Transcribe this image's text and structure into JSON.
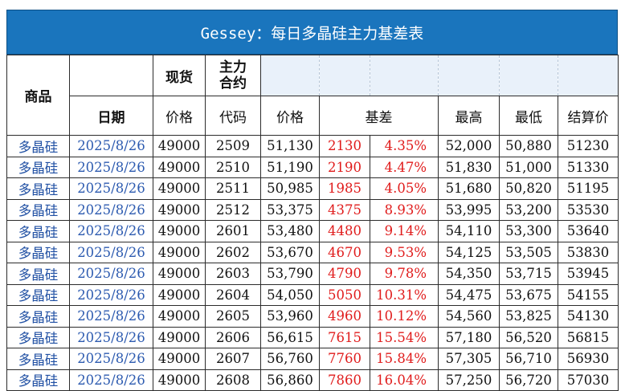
{
  "title": "Gessey：每日多晶硅主力基差表",
  "headers": {
    "product": "商品",
    "spot_top": "现货",
    "main_top": "主力\n合约",
    "date": "日期",
    "spot_price": "价格",
    "code": "代码",
    "price": "价格",
    "basis": "基差",
    "high": "最高",
    "low": "最低",
    "settle": "结算价"
  },
  "rows": [
    {
      "product": "多晶硅",
      "date": "2025/8/26",
      "spot": "49000",
      "code": "2509",
      "price": "51,130",
      "basis": "2130",
      "basis_pct": "4.35%",
      "high": "52,000",
      "low": "50,880",
      "settle": "51230"
    },
    {
      "product": "多晶硅",
      "date": "2025/8/26",
      "spot": "49000",
      "code": "2510",
      "price": "51,190",
      "basis": "2190",
      "basis_pct": "4.47%",
      "high": "51,830",
      "low": "51,000",
      "settle": "51330"
    },
    {
      "product": "多晶硅",
      "date": "2025/8/26",
      "spot": "49000",
      "code": "2511",
      "price": "50,985",
      "basis": "1985",
      "basis_pct": "4.05%",
      "high": "51,680",
      "low": "50,820",
      "settle": "51195"
    },
    {
      "product": "多晶硅",
      "date": "2025/8/26",
      "spot": "49000",
      "code": "2512",
      "price": "53,375",
      "basis": "4375",
      "basis_pct": "8.93%",
      "high": "53,995",
      "low": "53,200",
      "settle": "53530"
    },
    {
      "product": "多晶硅",
      "date": "2025/8/26",
      "spot": "49000",
      "code": "2601",
      "price": "53,480",
      "basis": "4480",
      "basis_pct": "9.14%",
      "high": "54,110",
      "low": "53,300",
      "settle": "53640"
    },
    {
      "product": "多晶硅",
      "date": "2025/8/26",
      "spot": "49000",
      "code": "2602",
      "price": "53,670",
      "basis": "4670",
      "basis_pct": "9.53%",
      "high": "54,125",
      "low": "53,505",
      "settle": "53830"
    },
    {
      "product": "多晶硅",
      "date": "2025/8/26",
      "spot": "49000",
      "code": "2603",
      "price": "53,790",
      "basis": "4790",
      "basis_pct": "9.78%",
      "high": "54,350",
      "low": "53,715",
      "settle": "53945"
    },
    {
      "product": "多晶硅",
      "date": "2025/8/26",
      "spot": "49000",
      "code": "2604",
      "price": "54,050",
      "basis": "5050",
      "basis_pct": "10.31%",
      "high": "54,475",
      "low": "53,675",
      "settle": "54155"
    },
    {
      "product": "多晶硅",
      "date": "2025/8/26",
      "spot": "49000",
      "code": "2605",
      "price": "53,960",
      "basis": "4960",
      "basis_pct": "10.12%",
      "high": "54,560",
      "low": "53,825",
      "settle": "54130"
    },
    {
      "product": "多晶硅",
      "date": "2025/8/26",
      "spot": "49000",
      "code": "2606",
      "price": "56,615",
      "basis": "7615",
      "basis_pct": "15.54%",
      "high": "57,180",
      "low": "56,520",
      "settle": "56815"
    },
    {
      "product": "多晶硅",
      "date": "2025/8/26",
      "spot": "49000",
      "code": "2607",
      "price": "56,760",
      "basis": "7760",
      "basis_pct": "15.84%",
      "high": "57,305",
      "low": "56,710",
      "settle": "56930"
    },
    {
      "product": "多晶硅",
      "date": "2025/8/26",
      "spot": "49000",
      "code": "2608",
      "price": "56,860",
      "basis": "7860",
      "basis_pct": "16.04%",
      "high": "57,250",
      "low": "56,720",
      "settle": "57030"
    }
  ],
  "colors": {
    "title_bg": "#1a75bd",
    "header_tint": "#e9f1fa",
    "basis_red": "#e01b1b",
    "product_blue": "#1f4fa3",
    "date_blue": "#2d5bb0"
  }
}
